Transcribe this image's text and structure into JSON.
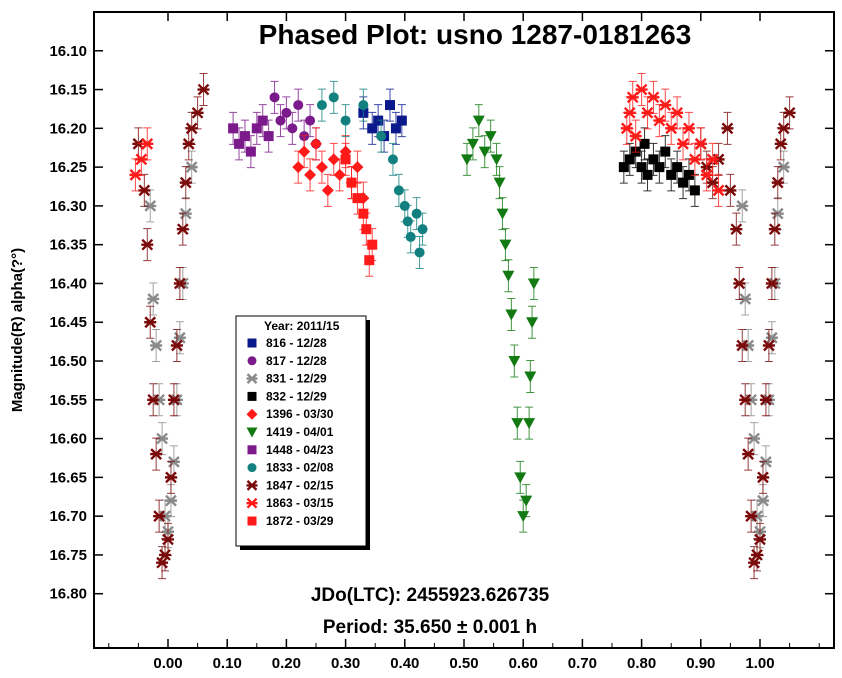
{
  "chart_data": {
    "type": "scatter",
    "title": "Phased Plot: usno 1287-0181263",
    "xlabel": "",
    "ylabel": "Magnitude(R) alpha(?°)",
    "xlim": [
      -0.125,
      1.125
    ],
    "ylim": [
      16.05,
      16.87
    ],
    "y_inverted": true,
    "grid": false,
    "x_ticks": [
      "0.00",
      "0.10",
      "0.20",
      "0.30",
      "0.40",
      "0.50",
      "0.60",
      "0.70",
      "0.80",
      "0.90",
      "1.00"
    ],
    "y_ticks": [
      "16.10",
      "16.15",
      "16.20",
      "16.25",
      "16.30",
      "16.35",
      "16.40",
      "16.45",
      "16.50",
      "16.55",
      "16.60",
      "16.65",
      "16.70",
      "16.75",
      "16.80"
    ],
    "annotations": [
      "JDo(LTC): 2455923.626735",
      "Period: 35.650 ± 0.001 h"
    ],
    "legend": {
      "title": "Year: 2011/15",
      "placement": "lower-left",
      "entries": [
        "816 - 12/28",
        "817 - 12/28",
        "831 - 12/29",
        "832 - 12/29",
        "1396 - 03/30",
        "1419 - 04/01",
        "1448 - 04/23",
        "1833 - 02/08",
        "1847 - 02/15",
        "1863 - 03/15",
        "1872 - 03/29"
      ]
    },
    "series": [
      {
        "legend_index": 0,
        "marker": "square",
        "color": "#0a1a8c",
        "points": [
          [
            0.33,
            16.18
          ],
          [
            0.345,
            16.2
          ],
          [
            0.355,
            16.19
          ],
          [
            0.365,
            16.21
          ],
          [
            0.375,
            16.17
          ],
          [
            0.385,
            16.2
          ],
          [
            0.395,
            16.19
          ]
        ]
      },
      {
        "legend_index": 1,
        "marker": "circle",
        "color": "#7b1a8a",
        "points": [
          [
            0.18,
            16.16
          ],
          [
            0.19,
            16.19
          ],
          [
            0.2,
            16.18
          ],
          [
            0.21,
            16.2
          ],
          [
            0.22,
            16.17
          ],
          [
            0.23,
            16.21
          ],
          [
            0.24,
            16.19
          ],
          [
            0.25,
            16.22
          ]
        ]
      },
      {
        "legend_index": 2,
        "marker": "asterisk",
        "color": "#8a8a8a",
        "points": [
          [
            -0.03,
            16.3
          ],
          [
            -0.025,
            16.42
          ],
          [
            -0.02,
            16.48
          ],
          [
            -0.015,
            16.55
          ],
          [
            -0.01,
            16.6
          ],
          [
            -0.005,
            16.7
          ],
          [
            0.0,
            16.72
          ],
          [
            0.005,
            16.68
          ],
          [
            0.01,
            16.63
          ],
          [
            0.015,
            16.55
          ],
          [
            0.02,
            16.47
          ],
          [
            0.025,
            16.4
          ],
          [
            0.03,
            16.31
          ],
          [
            0.04,
            16.25
          ],
          [
            0.97,
            16.3
          ],
          [
            0.975,
            16.42
          ],
          [
            0.98,
            16.48
          ],
          [
            0.985,
            16.55
          ],
          [
            0.99,
            16.6
          ],
          [
            0.995,
            16.7
          ],
          [
            1.0,
            16.72
          ],
          [
            1.005,
            16.68
          ],
          [
            1.01,
            16.63
          ],
          [
            1.015,
            16.55
          ],
          [
            1.02,
            16.47
          ],
          [
            1.025,
            16.4
          ],
          [
            1.03,
            16.31
          ],
          [
            1.04,
            16.25
          ]
        ]
      },
      {
        "legend_index": 3,
        "marker": "square",
        "color": "#000000",
        "points": [
          [
            0.77,
            16.25
          ],
          [
            0.78,
            16.24
          ],
          [
            0.79,
            16.23
          ],
          [
            0.8,
            16.25
          ],
          [
            0.805,
            16.22
          ],
          [
            0.81,
            16.26
          ],
          [
            0.82,
            16.24
          ],
          [
            0.83,
            16.25
          ],
          [
            0.84,
            16.23
          ],
          [
            0.85,
            16.26
          ],
          [
            0.86,
            16.25
          ],
          [
            0.87,
            16.27
          ],
          [
            0.88,
            16.26
          ],
          [
            0.89,
            16.28
          ]
        ]
      },
      {
        "legend_index": 4,
        "marker": "diamond",
        "color": "#ff1a1a",
        "points": [
          [
            0.22,
            16.25
          ],
          [
            0.23,
            16.23
          ],
          [
            0.24,
            16.26
          ],
          [
            0.25,
            16.22
          ],
          [
            0.26,
            16.25
          ],
          [
            0.27,
            16.28
          ],
          [
            0.28,
            16.24
          ],
          [
            0.29,
            16.26
          ],
          [
            0.3,
            16.23
          ],
          [
            0.31,
            16.27
          ],
          [
            0.32,
            16.25
          ],
          [
            0.33,
            16.29
          ]
        ]
      },
      {
        "legend_index": 5,
        "marker": "triangle-down",
        "color": "#137a13",
        "points": [
          [
            0.505,
            16.24
          ],
          [
            0.515,
            16.22
          ],
          [
            0.525,
            16.19
          ],
          [
            0.535,
            16.23
          ],
          [
            0.545,
            16.21
          ],
          [
            0.555,
            16.24
          ],
          [
            0.56,
            16.27
          ],
          [
            0.565,
            16.31
          ],
          [
            0.57,
            16.35
          ],
          [
            0.575,
            16.39
          ],
          [
            0.58,
            16.44
          ],
          [
            0.585,
            16.5
          ],
          [
            0.59,
            16.58
          ],
          [
            0.595,
            16.65
          ],
          [
            0.6,
            16.7
          ],
          [
            0.605,
            16.68
          ],
          [
            0.61,
            16.58
          ],
          [
            0.612,
            16.52
          ],
          [
            0.615,
            16.45
          ],
          [
            0.618,
            16.4
          ]
        ]
      },
      {
        "legend_index": 6,
        "marker": "square",
        "color": "#7b1a8a",
        "points": [
          [
            0.11,
            16.2
          ],
          [
            0.12,
            16.22
          ],
          [
            0.13,
            16.21
          ],
          [
            0.14,
            16.23
          ],
          [
            0.15,
            16.2
          ],
          [
            0.16,
            16.19
          ],
          [
            0.17,
            16.21
          ]
        ]
      },
      {
        "legend_index": 7,
        "marker": "circle",
        "color": "#138080",
        "points": [
          [
            0.26,
            16.17
          ],
          [
            0.28,
            16.16
          ],
          [
            0.3,
            16.19
          ],
          [
            0.33,
            16.17
          ],
          [
            0.36,
            16.21
          ],
          [
            0.38,
            16.24
          ],
          [
            0.39,
            16.28
          ],
          [
            0.4,
            16.3
          ],
          [
            0.405,
            16.32
          ],
          [
            0.41,
            16.34
          ],
          [
            0.42,
            16.31
          ],
          [
            0.425,
            16.36
          ],
          [
            0.43,
            16.33
          ]
        ]
      },
      {
        "legend_index": 8,
        "marker": "asterisk",
        "color": "#7a0a0a",
        "points": [
          [
            -0.05,
            16.22
          ],
          [
            -0.04,
            16.28
          ],
          [
            -0.035,
            16.35
          ],
          [
            -0.03,
            16.45
          ],
          [
            -0.025,
            16.55
          ],
          [
            -0.02,
            16.62
          ],
          [
            -0.015,
            16.7
          ],
          [
            -0.01,
            16.76
          ],
          [
            -0.005,
            16.75
          ],
          [
            0.0,
            16.73
          ],
          [
            0.005,
            16.65
          ],
          [
            0.01,
            16.55
          ],
          [
            0.015,
            16.48
          ],
          [
            0.02,
            16.4
          ],
          [
            0.025,
            16.33
          ],
          [
            0.03,
            16.27
          ],
          [
            0.035,
            16.22
          ],
          [
            0.04,
            16.2
          ],
          [
            0.05,
            16.18
          ],
          [
            0.06,
            16.15
          ],
          [
            0.9,
            16.22
          ],
          [
            0.91,
            16.25
          ],
          [
            0.92,
            16.27
          ],
          [
            0.93,
            16.24
          ],
          [
            0.945,
            16.2
          ],
          [
            0.95,
            16.28
          ],
          [
            0.96,
            16.33
          ],
          [
            0.965,
            16.4
          ],
          [
            0.97,
            16.48
          ],
          [
            0.975,
            16.55
          ],
          [
            0.98,
            16.62
          ],
          [
            0.985,
            16.7
          ],
          [
            0.99,
            16.76
          ],
          [
            0.995,
            16.75
          ],
          [
            1.0,
            16.73
          ],
          [
            1.005,
            16.65
          ],
          [
            1.01,
            16.55
          ],
          [
            1.015,
            16.48
          ],
          [
            1.02,
            16.4
          ],
          [
            1.025,
            16.33
          ],
          [
            1.03,
            16.27
          ],
          [
            1.035,
            16.22
          ],
          [
            1.04,
            16.2
          ],
          [
            1.05,
            16.18
          ]
        ]
      },
      {
        "legend_index": 9,
        "marker": "asterisk",
        "color": "#ff1a1a",
        "points": [
          [
            0.775,
            16.2
          ],
          [
            0.78,
            16.18
          ],
          [
            0.785,
            16.16
          ],
          [
            0.79,
            16.21
          ],
          [
            0.8,
            16.15
          ],
          [
            0.81,
            16.18
          ],
          [
            0.82,
            16.16
          ],
          [
            0.83,
            16.19
          ],
          [
            0.84,
            16.17
          ],
          [
            0.85,
            16.2
          ],
          [
            0.86,
            16.18
          ],
          [
            0.87,
            16.22
          ],
          [
            0.88,
            16.2
          ],
          [
            0.89,
            16.24
          ],
          [
            0.9,
            16.22
          ],
          [
            0.91,
            16.26
          ],
          [
            0.92,
            16.24
          ],
          [
            0.93,
            16.28
          ],
          [
            -0.055,
            16.26
          ],
          [
            -0.045,
            16.24
          ],
          [
            -0.035,
            16.22
          ]
        ]
      },
      {
        "legend_index": 10,
        "marker": "square",
        "color": "#ff1a1a",
        "points": [
          [
            0.3,
            16.24
          ],
          [
            0.31,
            16.27
          ],
          [
            0.32,
            16.29
          ],
          [
            0.33,
            16.31
          ],
          [
            0.335,
            16.33
          ],
          [
            0.34,
            16.37
          ],
          [
            0.345,
            16.35
          ]
        ]
      }
    ]
  }
}
